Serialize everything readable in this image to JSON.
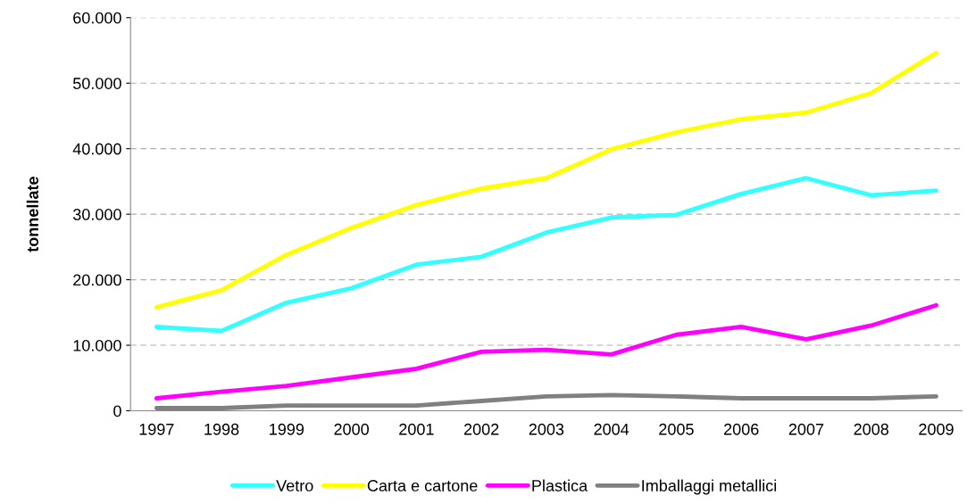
{
  "chart_data": {
    "type": "line",
    "ylabel": "tonnellate",
    "categories": [
      "1997",
      "1998",
      "1999",
      "2000",
      "2001",
      "2002",
      "2003",
      "2004",
      "2005",
      "2006",
      "2007",
      "2008",
      "2009"
    ],
    "series": [
      {
        "name": "Vetro",
        "color": "#33ffff",
        "values": [
          12800,
          12200,
          16500,
          18700,
          22300,
          23500,
          27200,
          29500,
          29900,
          33100,
          35500,
          32900,
          33600
        ]
      },
      {
        "name": "Carta e cartone",
        "color": "#ffff00",
        "values": [
          15800,
          18400,
          23800,
          27900,
          31400,
          33900,
          35500,
          39900,
          42500,
          44500,
          45500,
          48500,
          54600
        ]
      },
      {
        "name": "Plastica",
        "color": "#ff00ff",
        "values": [
          1900,
          2900,
          3800,
          5100,
          6400,
          9000,
          9300,
          8600,
          11600,
          12800,
          10900,
          13000,
          16100
        ]
      },
      {
        "name": "Imballaggi metallici",
        "color": "#808080",
        "values": [
          400,
          400,
          800,
          800,
          800,
          1500,
          2200,
          2400,
          2200,
          1900,
          1900,
          1900,
          2200
        ]
      }
    ],
    "ylim": [
      0,
      60000
    ],
    "yticks": [
      0,
      {
        "value": 10000,
        "label": "10.000"
      },
      {
        "value": 20000,
        "label": "20.000"
      },
      {
        "value": 30000,
        "label": "30.000"
      },
      {
        "value": 40000,
        "label": "40.000"
      },
      {
        "value": 50000,
        "label": "50.000"
      },
      {
        "value": 60000,
        "label": "60.000"
      }
    ],
    "grid": "y",
    "legend": "bottom",
    "marker": "none",
    "line_style": "solid"
  }
}
